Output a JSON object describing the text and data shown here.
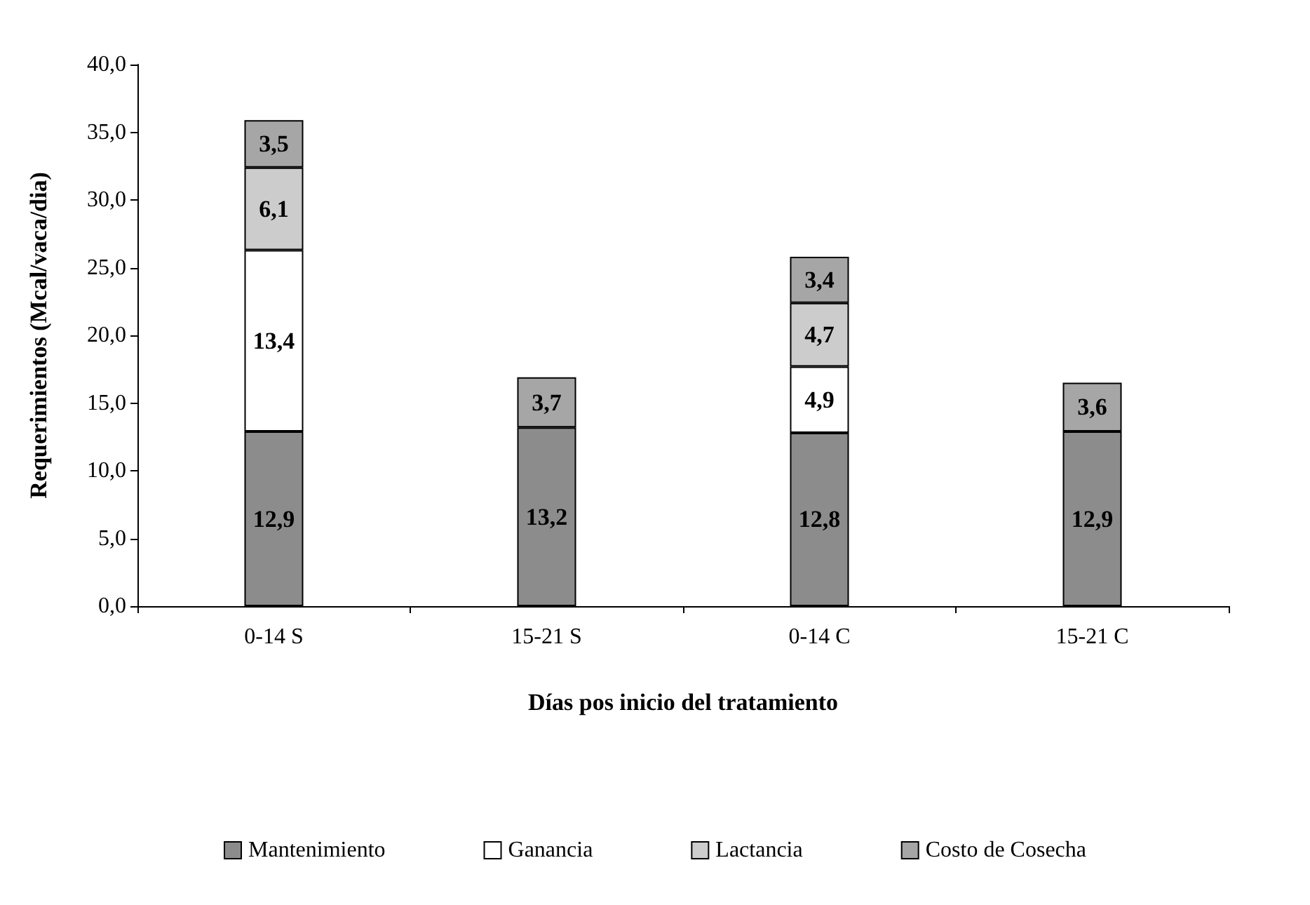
{
  "chart_data": {
    "type": "bar",
    "stacked": true,
    "xlabel": "Días pos inicio del tratamiento",
    "ylabel": "Requerimientos (Mcal/vaca/dia)",
    "categories": [
      "0-14 S",
      "15-21 S",
      "0-14 C",
      "15-21 C"
    ],
    "series": [
      {
        "name": "Mantenimiento",
        "color": "#8c8c8c",
        "values": [
          12.9,
          13.2,
          12.8,
          12.9
        ],
        "value_labels": [
          "12,9",
          "13,2",
          "12,8",
          "12,9"
        ]
      },
      {
        "name": "Ganancia",
        "color": "#ffffff",
        "values": [
          13.4,
          null,
          4.9,
          null
        ],
        "value_labels": [
          "13,4",
          null,
          "4,9",
          null
        ]
      },
      {
        "name": "Lactancia",
        "color": "#cccccc",
        "values": [
          6.1,
          null,
          4.7,
          null
        ],
        "value_labels": [
          "6,1",
          null,
          "4,7",
          null
        ]
      },
      {
        "name": "Costo de Cosecha",
        "color": "#a6a6a6",
        "values": [
          3.5,
          3.7,
          3.4,
          3.6
        ],
        "value_labels": [
          "3,5",
          "3,7",
          "3,4",
          "3,6"
        ]
      }
    ],
    "ylim": [
      0,
      40
    ],
    "yticks": [
      {
        "value": 0,
        "label": "0,0"
      },
      {
        "value": 5,
        "label": "5,0"
      },
      {
        "value": 10,
        "label": "10,0"
      },
      {
        "value": 15,
        "label": "15,0"
      },
      {
        "value": 20,
        "label": "20,0"
      },
      {
        "value": 25,
        "label": "25,0"
      },
      {
        "value": 30,
        "label": "30,0"
      },
      {
        "value": 35,
        "label": "35,0"
      },
      {
        "value": 40,
        "label": "40,0"
      }
    ],
    "grid": false,
    "legend": "bottom"
  }
}
